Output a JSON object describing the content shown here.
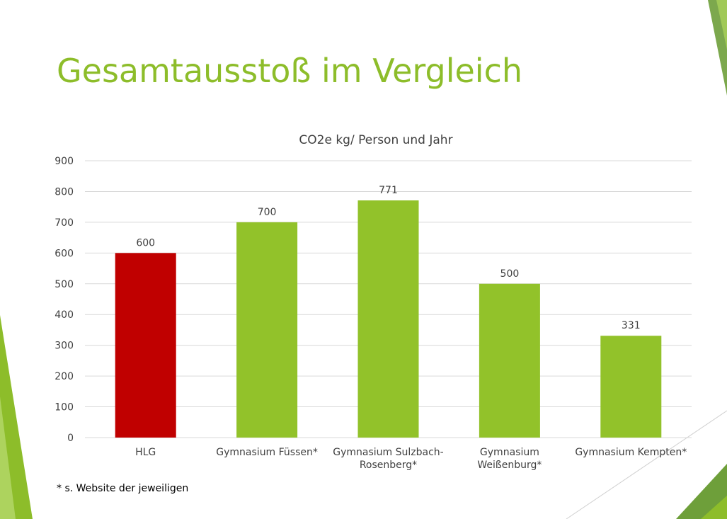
{
  "slide": {
    "title": "Gesamtausstoß im Vergleich",
    "footnote": "* s. Website der jeweiligen"
  },
  "colors": {
    "title": "#8dbd2a",
    "bar_default": "#92c22a",
    "bar_highlight": "#c00000",
    "gridline": "#d9d9d9",
    "accent_green": "#8dbd2a",
    "accent_dark_green": "#6e9f3a"
  },
  "chart_data": {
    "type": "bar",
    "title": "CO2e kg/ Person und Jahr",
    "xlabel": "",
    "ylabel": "",
    "ylim": [
      0,
      900
    ],
    "yticks": [
      "0",
      "100",
      "200",
      "300",
      "400",
      "500",
      "600",
      "700",
      "800",
      "900"
    ],
    "grid": true,
    "legend": "none",
    "categories": [
      "HLG",
      "Gymnasium Füssen*",
      "Gymnasium Sulzbach-Rosenberg*",
      "Gymnasium Weißenburg*",
      "Gymnasium Kempten*"
    ],
    "category_lines": [
      [
        "HLG"
      ],
      [
        "Gymnasium Füssen*"
      ],
      [
        "Gymnasium Sulzbach-",
        "Rosenberg*"
      ],
      [
        "Gymnasium",
        "Weißenburg*"
      ],
      [
        "Gymnasium Kempten*"
      ]
    ],
    "values": [
      600,
      700,
      771,
      500,
      331
    ],
    "value_labels": [
      "600",
      "700",
      "771",
      "500",
      "331"
    ],
    "highlight_index": 0
  }
}
